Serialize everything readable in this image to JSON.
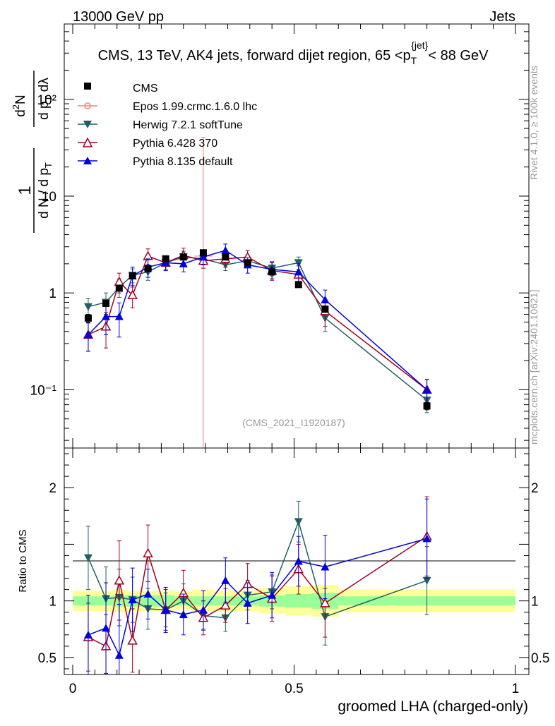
{
  "header": {
    "energy_label": "13000 GeV pp",
    "process_label": "Jets"
  },
  "side_labels": {
    "rivet": "Rivet 4.1.0, ≥ 100k events",
    "mcplots": "mcplots.cern.ch [arXiv:2401.10621]"
  },
  "chart_data": [
    {
      "type": "line",
      "scale": "log",
      "title": "CMS, 13 TeV, AK4 jets, forward dijet region, 65 <p_T^{jet}< 88 GeV",
      "ylabel": "1/dN/dp_T · d²N/dp_T dλ",
      "analysis_tag": "(CMS_2021_I1920187)",
      "ylim": [
        0.025,
        600
      ],
      "xlim": [
        -0.02,
        1.02
      ],
      "y_ticks": [
        {
          "value": 0.1,
          "label": "10⁻¹"
        },
        {
          "value": 1,
          "label": "1"
        },
        {
          "value": 10,
          "label": "10"
        },
        {
          "value": 100,
          "label": "10²"
        }
      ],
      "series": [
        {
          "name": "CMS",
          "color": "#000000",
          "marker": "square",
          "x": [
            0.035,
            0.075,
            0.105,
            0.135,
            0.17,
            0.21,
            0.25,
            0.295,
            0.345,
            0.395,
            0.45,
            0.51,
            0.57,
            0.8
          ],
          "values": [
            0.55,
            0.78,
            1.12,
            1.5,
            1.78,
            2.25,
            2.35,
            2.6,
            2.35,
            2.05,
            1.65,
            1.22,
            0.68,
            0.068
          ],
          "err": [
            0.05,
            0.05,
            0.06,
            0.06,
            0.08,
            0.1,
            0.1,
            0.12,
            0.1,
            0.1,
            0.08,
            0.08,
            0.05,
            0.006
          ]
        },
        {
          "name": "Epos 1.99.crmc.1.6.0 lhc",
          "color": "#ff7f7f",
          "marker": "cross",
          "x": [
            0.295
          ],
          "values": [
            2.4
          ],
          "err_low": [
            2.38
          ],
          "err_high": [
            38
          ],
          "xerr": [
            0.02
          ]
        },
        {
          "name": "Herwig 7.2.1 softTune",
          "color": "#1f6060",
          "marker": "triangle-down",
          "x": [
            0.035,
            0.075,
            0.105,
            0.135,
            0.17,
            0.21,
            0.25,
            0.295,
            0.345,
            0.395,
            0.45,
            0.51,
            0.57,
            0.8
          ],
          "values": [
            0.72,
            0.8,
            1.15,
            1.52,
            1.65,
            2.05,
            2.35,
            2.25,
            1.95,
            2.15,
            1.8,
            2.05,
            0.55,
            0.078
          ],
          "err": [
            0.15,
            0.2,
            0.25,
            0.25,
            0.3,
            0.3,
            0.35,
            0.3,
            0.25,
            0.3,
            0.3,
            0.3,
            0.15,
            0.02
          ]
        },
        {
          "name": "Pythia 6.428 370",
          "color": "#a00020",
          "marker": "triangle-open",
          "x": [
            0.035,
            0.075,
            0.105,
            0.135,
            0.17,
            0.21,
            0.25,
            0.295,
            0.345,
            0.395,
            0.45,
            0.51,
            0.57,
            0.8
          ],
          "values": [
            0.37,
            0.45,
            1.3,
            0.95,
            2.4,
            2.05,
            2.45,
            2.15,
            2.25,
            2.35,
            1.7,
            1.55,
            0.65,
            0.1
          ],
          "err": [
            0.12,
            0.18,
            0.3,
            0.25,
            0.45,
            0.35,
            0.45,
            0.35,
            0.4,
            0.4,
            0.35,
            0.35,
            0.2,
            0.028
          ]
        },
        {
          "name": "Pythia 8.135 default",
          "color": "#0000e0",
          "marker": "triangle",
          "x": [
            0.035,
            0.075,
            0.105,
            0.135,
            0.17,
            0.21,
            0.25,
            0.295,
            0.345,
            0.395,
            0.45,
            0.51,
            0.57,
            0.8
          ],
          "values": [
            0.37,
            0.57,
            0.57,
            1.5,
            1.85,
            2.05,
            2.0,
            2.35,
            2.75,
            1.95,
            1.75,
            1.65,
            0.85,
            0.1
          ],
          "err": [
            0.12,
            0.2,
            0.22,
            0.35,
            0.4,
            0.35,
            0.35,
            0.4,
            0.45,
            0.35,
            0.35,
            0.35,
            0.22,
            0.028
          ]
        }
      ]
    },
    {
      "type": "line",
      "ylabel": "Ratio to CMS",
      "xlabel": "groomed LHA (charged-only)",
      "xlim": [
        -0.02,
        1.02
      ],
      "ylim": [
        0.35,
        2.35
      ],
      "x_ticks": [
        {
          "value": 0,
          "label": "0"
        },
        {
          "value": 0.5,
          "label": "0.5"
        },
        {
          "value": 1,
          "label": "1"
        }
      ],
      "y_ticks": [
        {
          "value": 0.5,
          "label": "0.5"
        },
        {
          "value": 1,
          "label": "1"
        },
        {
          "value": 2,
          "label": "2"
        }
      ],
      "bands": {
        "bin_edges": [
          0,
          0.06,
          0.09,
          0.12,
          0.15,
          0.19,
          0.23,
          0.27,
          0.32,
          0.37,
          0.42,
          0.48,
          0.54,
          0.6,
          1.0
        ],
        "stat_half_width": [
          0.04,
          0.04,
          0.05,
          0.05,
          0.05,
          0.05,
          0.04,
          0.04,
          0.04,
          0.04,
          0.05,
          0.06,
          0.07,
          0.04
        ],
        "total_half_width": [
          0.09,
          0.09,
          0.1,
          0.09,
          0.09,
          0.09,
          0.08,
          0.1,
          0.09,
          0.09,
          0.11,
          0.13,
          0.14,
          0.1
        ],
        "stat_color": "#99ff99",
        "total_color": "#ffff99"
      },
      "series": [
        {
          "name": "Herwig 7.2.1 softTune",
          "color": "#1f6060",
          "marker": "triangle-down",
          "x": [
            0.035,
            0.075,
            0.105,
            0.135,
            0.17,
            0.21,
            0.25,
            0.295,
            0.345,
            0.395,
            0.45,
            0.51,
            0.57,
            0.8
          ],
          "values": [
            1.38,
            1.02,
            1.03,
            1.01,
            0.93,
            0.92,
            1.0,
            0.87,
            0.85,
            1.05,
            1.08,
            1.7,
            0.86,
            1.18
          ],
          "err": [
            0.28,
            0.28,
            0.25,
            0.2,
            0.18,
            0.15,
            0.15,
            0.13,
            0.12,
            0.13,
            0.15,
            0.18,
            0.25,
            0.3
          ]
        },
        {
          "name": "Pythia 6.428 370",
          "color": "#a00020",
          "marker": "triangle-open",
          "x": [
            0.035,
            0.075,
            0.105,
            0.135,
            0.17,
            0.21,
            0.25,
            0.295,
            0.345,
            0.395,
            0.45,
            0.51,
            0.57,
            0.8
          ],
          "values": [
            0.68,
            0.6,
            1.18,
            0.65,
            1.42,
            0.92,
            1.07,
            0.85,
            0.96,
            1.15,
            1.02,
            1.28,
            0.98,
            1.57
          ],
          "err": [
            0.3,
            0.28,
            0.35,
            0.28,
            0.25,
            0.18,
            0.2,
            0.15,
            0.15,
            0.18,
            0.2,
            0.22,
            0.3,
            0.35
          ]
        },
        {
          "name": "Pythia 8.135 default",
          "color": "#0000e0",
          "marker": "triangle",
          "x": [
            0.035,
            0.075,
            0.105,
            0.135,
            0.17,
            0.21,
            0.25,
            0.295,
            0.345,
            0.395,
            0.45,
            0.51,
            0.57,
            0.8
          ],
          "values": [
            0.7,
            0.76,
            0.52,
            1.01,
            1.06,
            0.92,
            0.88,
            0.92,
            1.18,
            0.98,
            1.05,
            1.35,
            1.3,
            1.55
          ],
          "err": [
            0.35,
            0.4,
            0.45,
            0.28,
            0.22,
            0.2,
            0.18,
            0.17,
            0.2,
            0.18,
            0.2,
            0.22,
            0.28,
            0.35
          ]
        }
      ]
    }
  ]
}
